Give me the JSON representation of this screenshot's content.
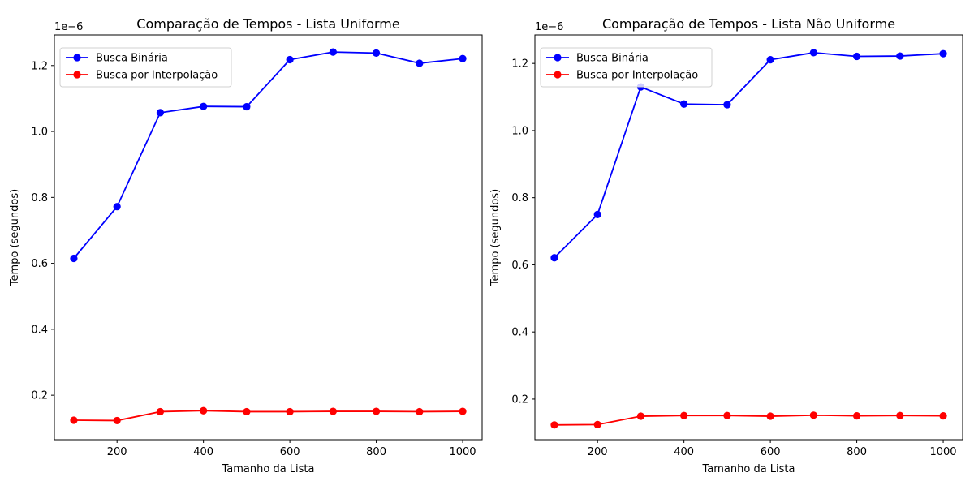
{
  "chart_data": [
    {
      "type": "line",
      "title": "Comparação de Tempos - Lista Uniforme",
      "xlabel": "Tamanho da Lista",
      "ylabel": "Tempo (segundos)",
      "y_offset_label": "1e−6",
      "x": [
        100,
        200,
        300,
        400,
        500,
        600,
        700,
        800,
        900,
        1000
      ],
      "xlim": [
        55,
        1045
      ],
      "ylim": [
        0.065,
        1.293
      ],
      "xticks": [
        200,
        400,
        600,
        800,
        1000
      ],
      "yticks": [
        0.2,
        0.4,
        0.6,
        0.8,
        1.0,
        1.2
      ],
      "ytick_labels": [
        "0.2",
        "0.4",
        "0.6",
        "0.8",
        "1.0",
        "1.2"
      ],
      "grid": false,
      "legend_position": "top-left",
      "series": [
        {
          "name": "Busca Binária",
          "color": "#0000ff",
          "values": [
            0.615,
            0.772,
            1.057,
            1.076,
            1.075,
            1.218,
            1.241,
            1.238,
            1.207,
            1.221
          ]
        },
        {
          "name": "Busca por Interpolação",
          "color": "#ff0000",
          "values": [
            0.124,
            0.123,
            0.15,
            0.153,
            0.15,
            0.15,
            0.151,
            0.151,
            0.15,
            0.151
          ]
        }
      ]
    },
    {
      "type": "line",
      "title": "Comparação de Tempos - Lista Não Uniforme",
      "xlabel": "Tamanho da Lista",
      "ylabel": "Tempo (segundos)",
      "y_offset_label": "1e−6",
      "x": [
        100,
        200,
        300,
        400,
        500,
        600,
        700,
        800,
        900,
        1000
      ],
      "xlim": [
        55,
        1045
      ],
      "ylim": [
        0.079,
        1.285
      ],
      "xticks": [
        200,
        400,
        600,
        800,
        1000
      ],
      "yticks": [
        0.2,
        0.4,
        0.6,
        0.8,
        1.0,
        1.2
      ],
      "ytick_labels": [
        "0.2",
        "0.4",
        "0.6",
        "0.8",
        "1.0",
        "1.2"
      ],
      "grid": false,
      "legend_position": "top-left",
      "series": [
        {
          "name": "Busca Binária",
          "color": "#0000ff",
          "values": [
            0.621,
            0.75,
            1.13,
            1.079,
            1.077,
            1.211,
            1.232,
            1.221,
            1.222,
            1.229
          ]
        },
        {
          "name": "Busca por Interpolação",
          "color": "#ff0000",
          "values": [
            0.123,
            0.124,
            0.149,
            0.151,
            0.151,
            0.149,
            0.152,
            0.15,
            0.151,
            0.15
          ]
        }
      ]
    }
  ]
}
